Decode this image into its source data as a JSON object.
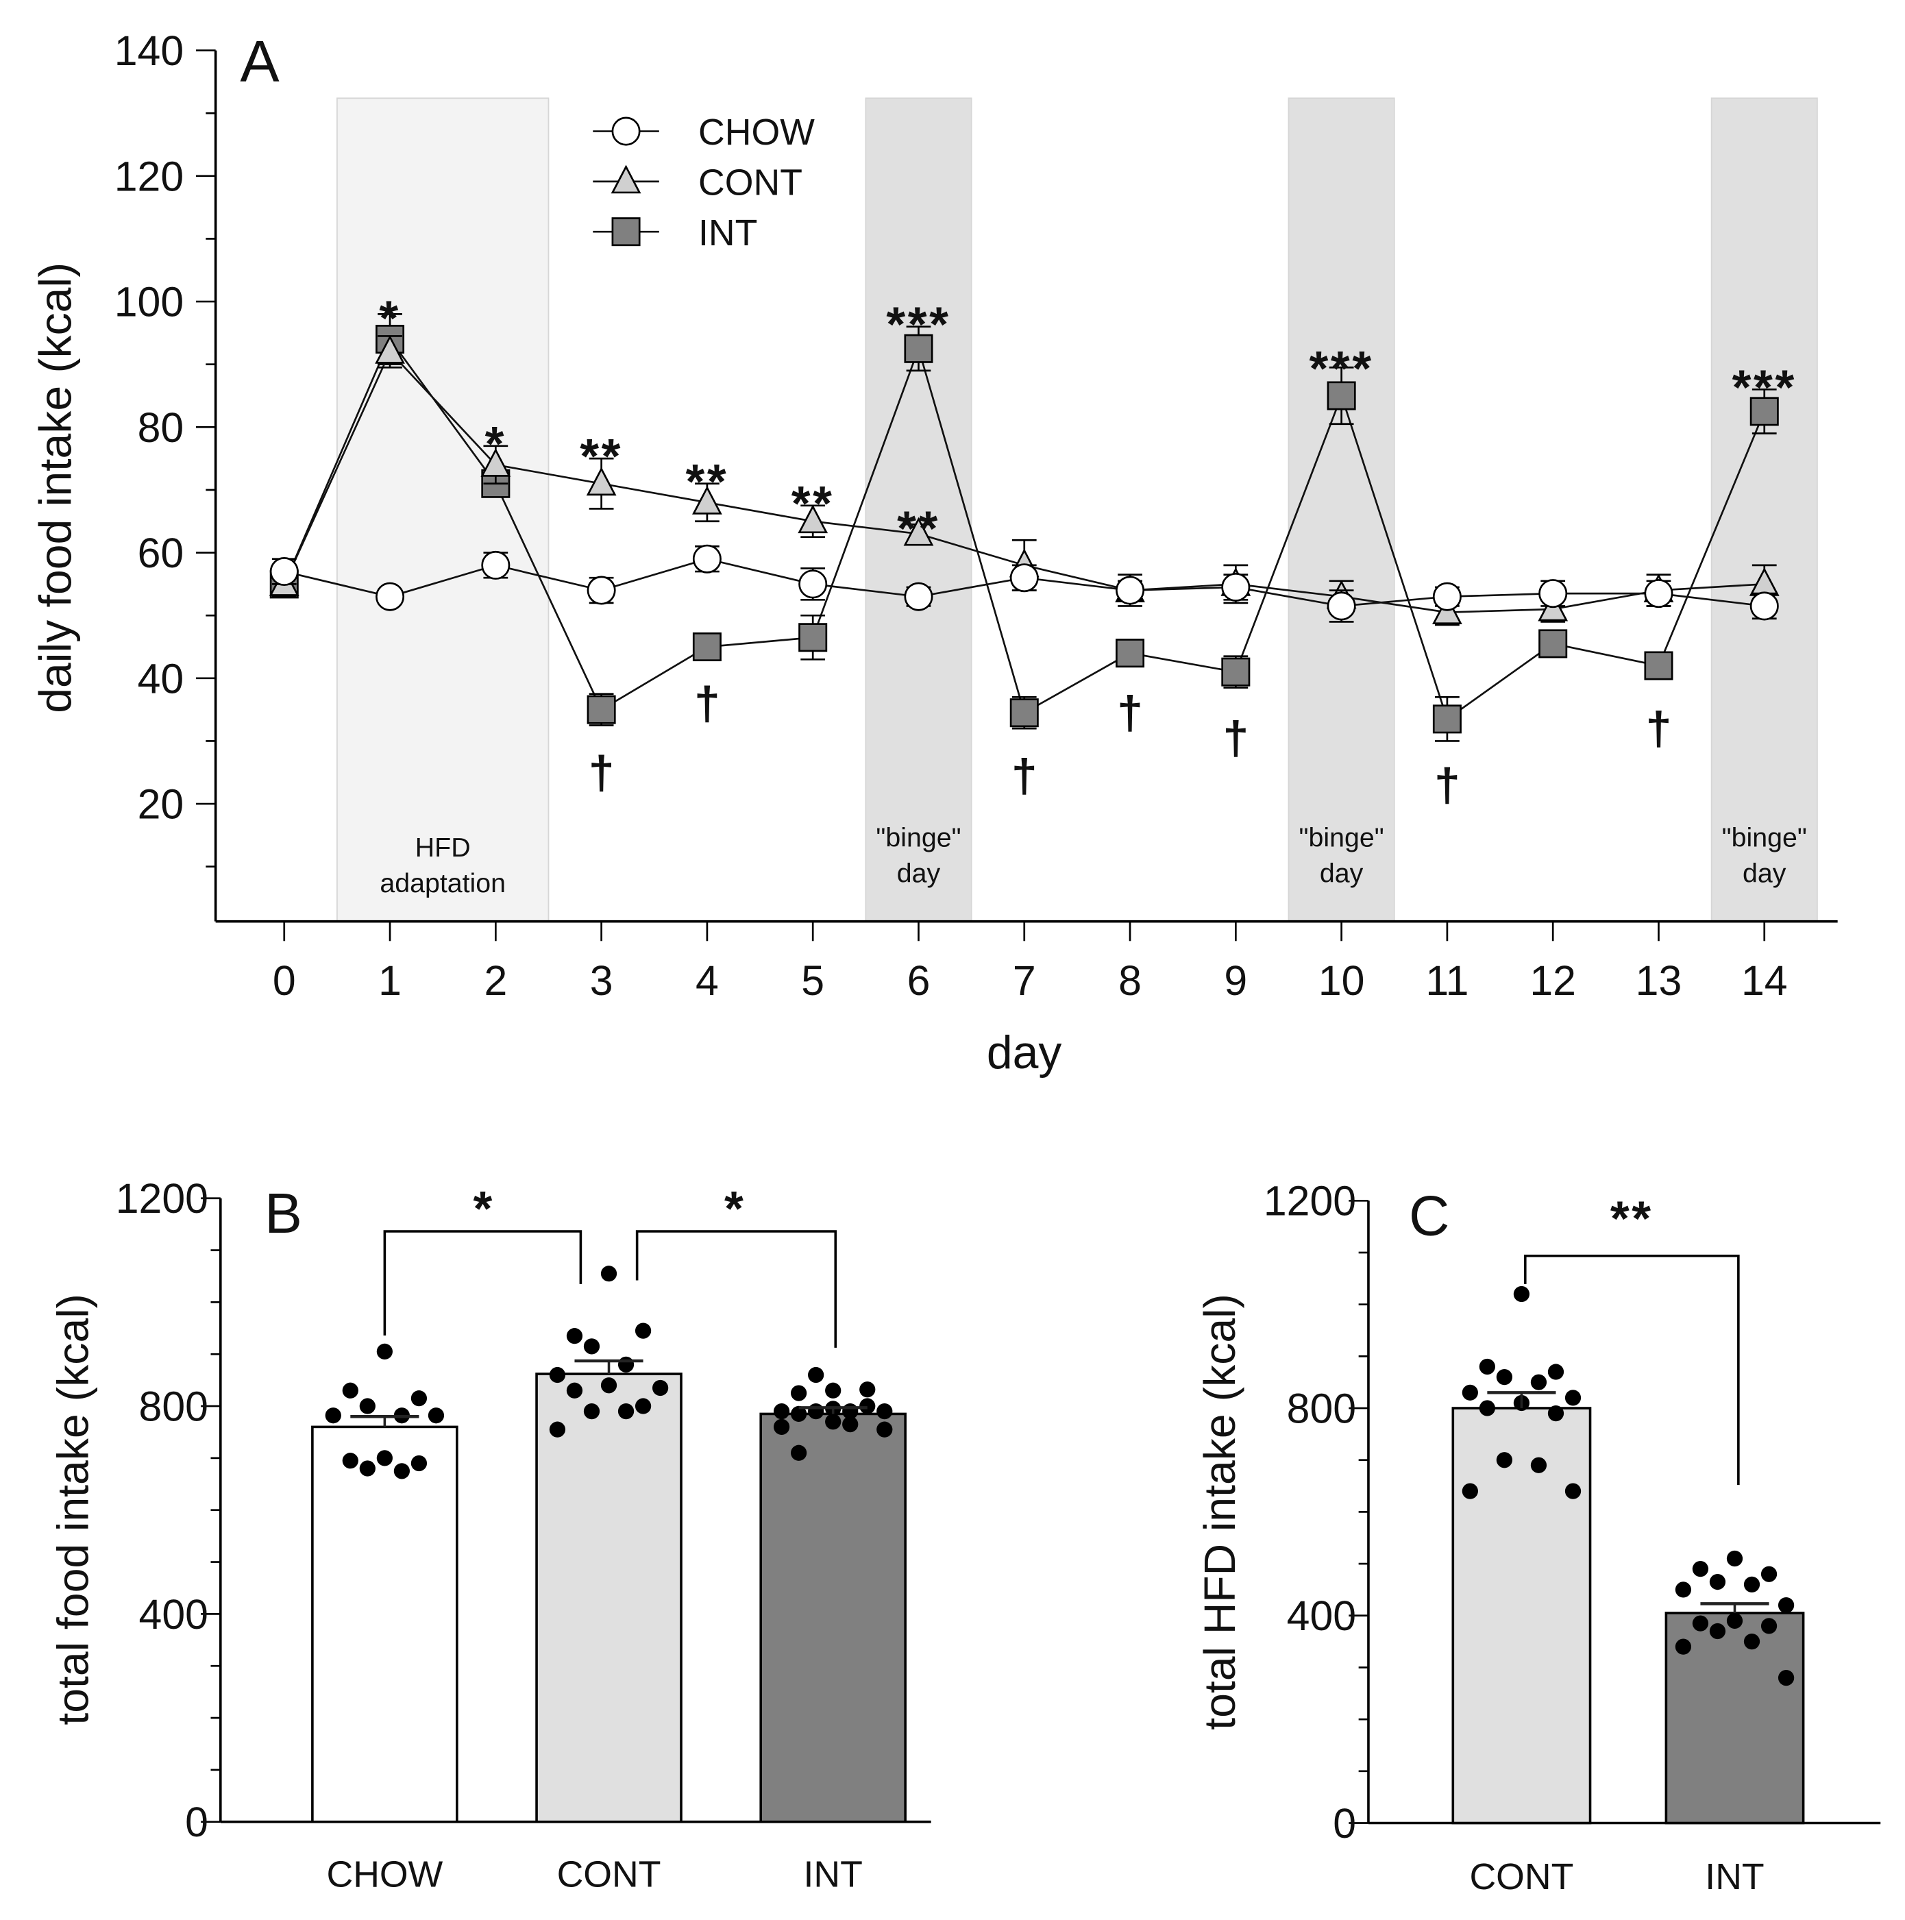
{
  "chart_data": [
    {
      "panel": "A",
      "type": "line",
      "panel_label": "A",
      "xlabel": "day",
      "ylabel": "daily food intake (kcal)",
      "ylim": [
        0,
        140
      ],
      "yticks": [
        20,
        40,
        60,
        80,
        100,
        120,
        140
      ],
      "x": [
        0,
        1,
        2,
        3,
        4,
        5,
        6,
        7,
        8,
        9,
        10,
        11,
        12,
        13,
        14
      ],
      "legend": {
        "position": "top-left",
        "entries": [
          "CHOW",
          "CONT",
          "INT"
        ]
      },
      "series": [
        {
          "name": "CHOW",
          "marker": "circle",
          "color": "#ffffff",
          "values": [
            57,
            53,
            58,
            54,
            59,
            55,
            53,
            56,
            54,
            54.5,
            51.5,
            53,
            53.5,
            53.5,
            51.5
          ],
          "sem": [
            2,
            1,
            2,
            2,
            2,
            2.5,
            1.5,
            2,
            1.5,
            2,
            2.5,
            1.5,
            2,
            2,
            2
          ]
        },
        {
          "name": "CONT",
          "marker": "triangle",
          "color": "#d0d0d0",
          "values": [
            55,
            92,
            74,
            71,
            68,
            65,
            63,
            58,
            54,
            55,
            53,
            50.5,
            51,
            54,
            55
          ],
          "sem": [
            2,
            2.5,
            3,
            4,
            3,
            2.5,
            1.5,
            4,
            2.5,
            3,
            2.5,
            2,
            2,
            2.5,
            3
          ]
        },
        {
          "name": "INT",
          "marker": "square",
          "color": "#808080",
          "values": [
            55,
            94,
            71,
            35,
            45,
            46.5,
            92.5,
            34.5,
            44,
            41,
            85,
            33.5,
            45.5,
            42,
            82.5
          ],
          "sem": [
            1.5,
            4,
            2,
            2.5,
            1.5,
            3.5,
            3.5,
            2.5,
            1.5,
            2.5,
            4.5,
            3.5,
            1.5,
            1.5,
            3.5
          ]
        }
      ],
      "shaded_regions": [
        {
          "from": 0.5,
          "to": 2.5,
          "label_lines": [
            "HFD",
            "adaptation"
          ],
          "color": "#f3f3f3"
        },
        {
          "from": 5.5,
          "to": 6.5,
          "label_lines": [
            "\"binge\"",
            "day"
          ],
          "color": "#e0e0e0"
        },
        {
          "from": 9.5,
          "to": 10.5,
          "label_lines": [
            "\"binge\"",
            "day"
          ],
          "color": "#e0e0e0"
        },
        {
          "from": 13.5,
          "to": 14.5,
          "label_lines": [
            "\"binge\"",
            "day"
          ],
          "color": "#e0e0e0"
        }
      ],
      "annotations": [
        {
          "day": 1,
          "text": "*",
          "value": 99
        },
        {
          "day": 2,
          "text": "*",
          "value": 79
        },
        {
          "day": 3,
          "text": "**",
          "value": 77
        },
        {
          "day": 4,
          "text": "**",
          "value": 73
        },
        {
          "day": 5,
          "text": "**",
          "value": 69.5
        },
        {
          "day": 6,
          "text": "***",
          "value": 98
        },
        {
          "day": 6,
          "text": "**",
          "value": 65.5
        },
        {
          "day": 10,
          "text": "***",
          "value": 91
        },
        {
          "day": 14,
          "text": "***",
          "value": 88
        },
        {
          "day": 3,
          "text": "†",
          "value": 26
        },
        {
          "day": 4,
          "text": "†",
          "value": 37
        },
        {
          "day": 7,
          "text": "†",
          "value": 25.5
        },
        {
          "day": 8,
          "text": "†",
          "value": 35.5
        },
        {
          "day": 9,
          "text": "†",
          "value": 31.5
        },
        {
          "day": 11,
          "text": "†",
          "value": 24
        },
        {
          "day": 13,
          "text": "†",
          "value": 33
        }
      ]
    },
    {
      "panel": "B",
      "type": "bar",
      "panel_label": "B",
      "ylabel": "total food intake (kcal)",
      "ylim": [
        0,
        1200
      ],
      "yticks": [
        0,
        400,
        800,
        1200
      ],
      "categories": [
        "CHOW",
        "CONT",
        "INT"
      ],
      "colors": [
        "#ffffff",
        "#e0e0e0",
        "#808080"
      ],
      "values": [
        760,
        862,
        785
      ],
      "sem": [
        20,
        25,
        12
      ],
      "points": [
        [
          905,
          830,
          815,
          800,
          782,
          782,
          782,
          700,
          695,
          690,
          680,
          675
        ],
        [
          1055,
          935,
          945,
          915,
          880,
          860,
          835,
          840,
          830,
          800,
          790,
          790,
          755
        ],
        [
          830,
          825,
          832,
          860,
          790,
          790,
          790,
          795,
          785,
          800,
          790,
          765,
          760,
          755,
          770,
          710
        ]
      ],
      "comparisons": [
        {
          "groups": [
            "CHOW",
            "CONT"
          ],
          "text": "*"
        },
        {
          "groups": [
            "CONT",
            "INT"
          ],
          "text": "*"
        }
      ]
    },
    {
      "panel": "C",
      "type": "bar",
      "panel_label": "C",
      "ylabel": "total HFD intake (kcal)",
      "ylim": [
        0,
        1200
      ],
      "yticks": [
        0,
        400,
        800,
        1200
      ],
      "categories": [
        "CONT",
        "INT"
      ],
      "colors": [
        "#e0e0e0",
        "#808080"
      ],
      "values": [
        800,
        405
      ],
      "sem": [
        30,
        18
      ],
      "points": [
        [
          1020,
          880,
          870,
          860,
          850,
          830,
          820,
          810,
          800,
          790,
          700,
          690,
          640,
          640
        ],
        [
          510,
          490,
          480,
          465,
          460,
          450,
          420,
          390,
          385,
          380,
          370,
          350,
          340,
          280
        ]
      ],
      "comparisons": [
        {
          "groups": [
            "CONT",
            "INT"
          ],
          "text": "**"
        }
      ]
    }
  ]
}
